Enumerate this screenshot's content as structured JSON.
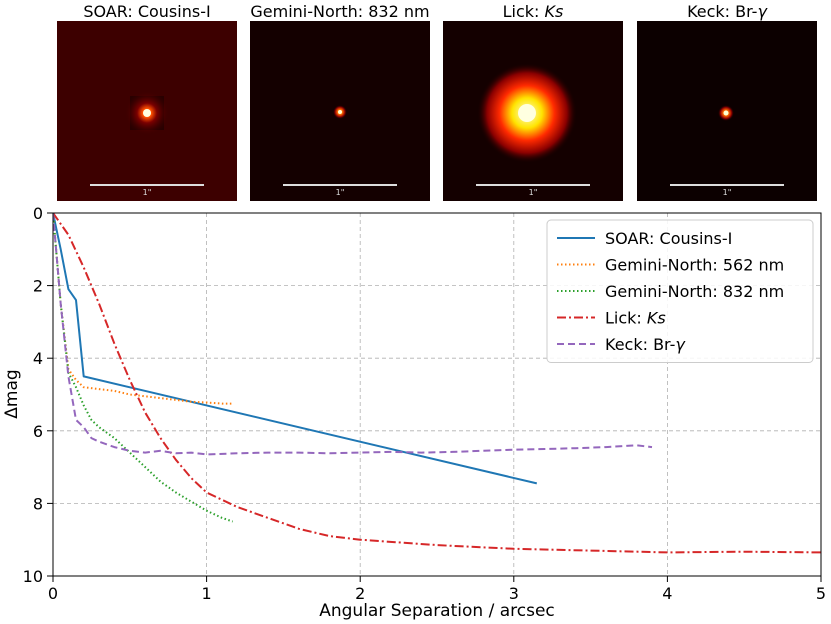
{
  "figure": {
    "panels": [
      {
        "title": "SOAR: Cousins-I",
        "scale_label": "1\"",
        "style": "diffuse",
        "background": "#3d0000",
        "core": "bright"
      },
      {
        "title": "Gemini-North: 832 nm",
        "scale_label": "1\"",
        "style": "point",
        "background": "#140000",
        "core": "small"
      },
      {
        "title": "Lick: ",
        "title_italic": "Ks",
        "scale_label": "1\"",
        "style": "blob",
        "background": "#140000",
        "core": "large"
      },
      {
        "title": "Keck: Br-",
        "title_italic": "γ",
        "scale_label": "1\"",
        "style": "point",
        "background": "#0c0000",
        "core": "small"
      }
    ]
  },
  "chart_data": {
    "type": "line",
    "xlabel": "Angular Separation / arcsec",
    "ylabel": "Δmag",
    "xlim": [
      0,
      5
    ],
    "ylim": [
      10,
      0
    ],
    "xticks": [
      "0",
      "1",
      "2",
      "3",
      "4",
      "5"
    ],
    "yticks": [
      "0",
      "2",
      "4",
      "6",
      "8",
      "10"
    ],
    "grid": true,
    "legend_position": "top-right",
    "series": [
      {
        "name": "SOAR: Cousins-I",
        "color": "#1f77b4",
        "dash": "solid",
        "x": [
          0.0,
          0.05,
          0.1,
          0.15,
          0.2,
          3.15
        ],
        "y": [
          0.0,
          1.0,
          2.1,
          2.4,
          4.5,
          7.45
        ]
      },
      {
        "name": "Gemini-North: 562 nm",
        "color": "#ff7f0e",
        "dash": "dotted",
        "x": [
          0.0,
          0.05,
          0.1,
          0.15,
          0.2,
          0.3,
          0.4,
          0.5,
          0.6,
          0.7,
          0.8,
          0.9,
          1.0,
          1.1,
          1.17
        ],
        "y": [
          0.0,
          2.5,
          4.3,
          4.6,
          4.8,
          4.85,
          4.9,
          5.0,
          5.05,
          5.1,
          5.15,
          5.2,
          5.22,
          5.25,
          5.25
        ]
      },
      {
        "name": "Gemini-North: 832 nm",
        "color": "#2ca02c",
        "dash": "dotted",
        "x": [
          0.0,
          0.05,
          0.1,
          0.15,
          0.2,
          0.25,
          0.3,
          0.4,
          0.5,
          0.6,
          0.7,
          0.8,
          0.9,
          1.0,
          1.1,
          1.17
        ],
        "y": [
          0.0,
          2.5,
          4.4,
          4.8,
          5.3,
          5.7,
          5.9,
          6.2,
          6.6,
          7.0,
          7.4,
          7.7,
          7.95,
          8.2,
          8.4,
          8.5
        ]
      },
      {
        "name": "Lick: Ks",
        "name_plain": "Lick: ",
        "name_italic": "Ks",
        "color": "#d62728",
        "dash": "dashdot",
        "x": [
          0.0,
          0.1,
          0.2,
          0.3,
          0.4,
          0.5,
          0.6,
          0.7,
          0.8,
          0.9,
          1.0,
          1.1,
          1.2,
          1.4,
          1.6,
          1.8,
          2.0,
          2.5,
          3.0,
          3.5,
          4.0,
          4.5,
          5.0
        ],
        "y": [
          0.0,
          0.6,
          1.5,
          2.5,
          3.6,
          4.6,
          5.5,
          6.2,
          6.8,
          7.3,
          7.7,
          7.9,
          8.1,
          8.4,
          8.7,
          8.9,
          9.0,
          9.15,
          9.25,
          9.3,
          9.35,
          9.33,
          9.35
        ]
      },
      {
        "name": "Keck: Br-γ",
        "name_plain": "Keck: Br-",
        "name_italic": "γ",
        "color": "#9467bd",
        "dash": "dashed",
        "x": [
          0.0,
          0.05,
          0.1,
          0.15,
          0.2,
          0.25,
          0.3,
          0.4,
          0.5,
          0.6,
          0.7,
          0.8,
          0.9,
          1.0,
          1.2,
          1.4,
          1.6,
          1.8,
          2.0,
          2.2,
          2.4,
          2.6,
          2.8,
          3.0,
          3.2,
          3.4,
          3.6,
          3.8,
          3.9
        ],
        "y": [
          0.0,
          2.5,
          4.5,
          5.7,
          5.9,
          6.2,
          6.3,
          6.45,
          6.55,
          6.6,
          6.55,
          6.62,
          6.6,
          6.65,
          6.62,
          6.6,
          6.6,
          6.62,
          6.6,
          6.58,
          6.6,
          6.58,
          6.55,
          6.52,
          6.5,
          6.48,
          6.45,
          6.4,
          6.45
        ]
      }
    ]
  }
}
